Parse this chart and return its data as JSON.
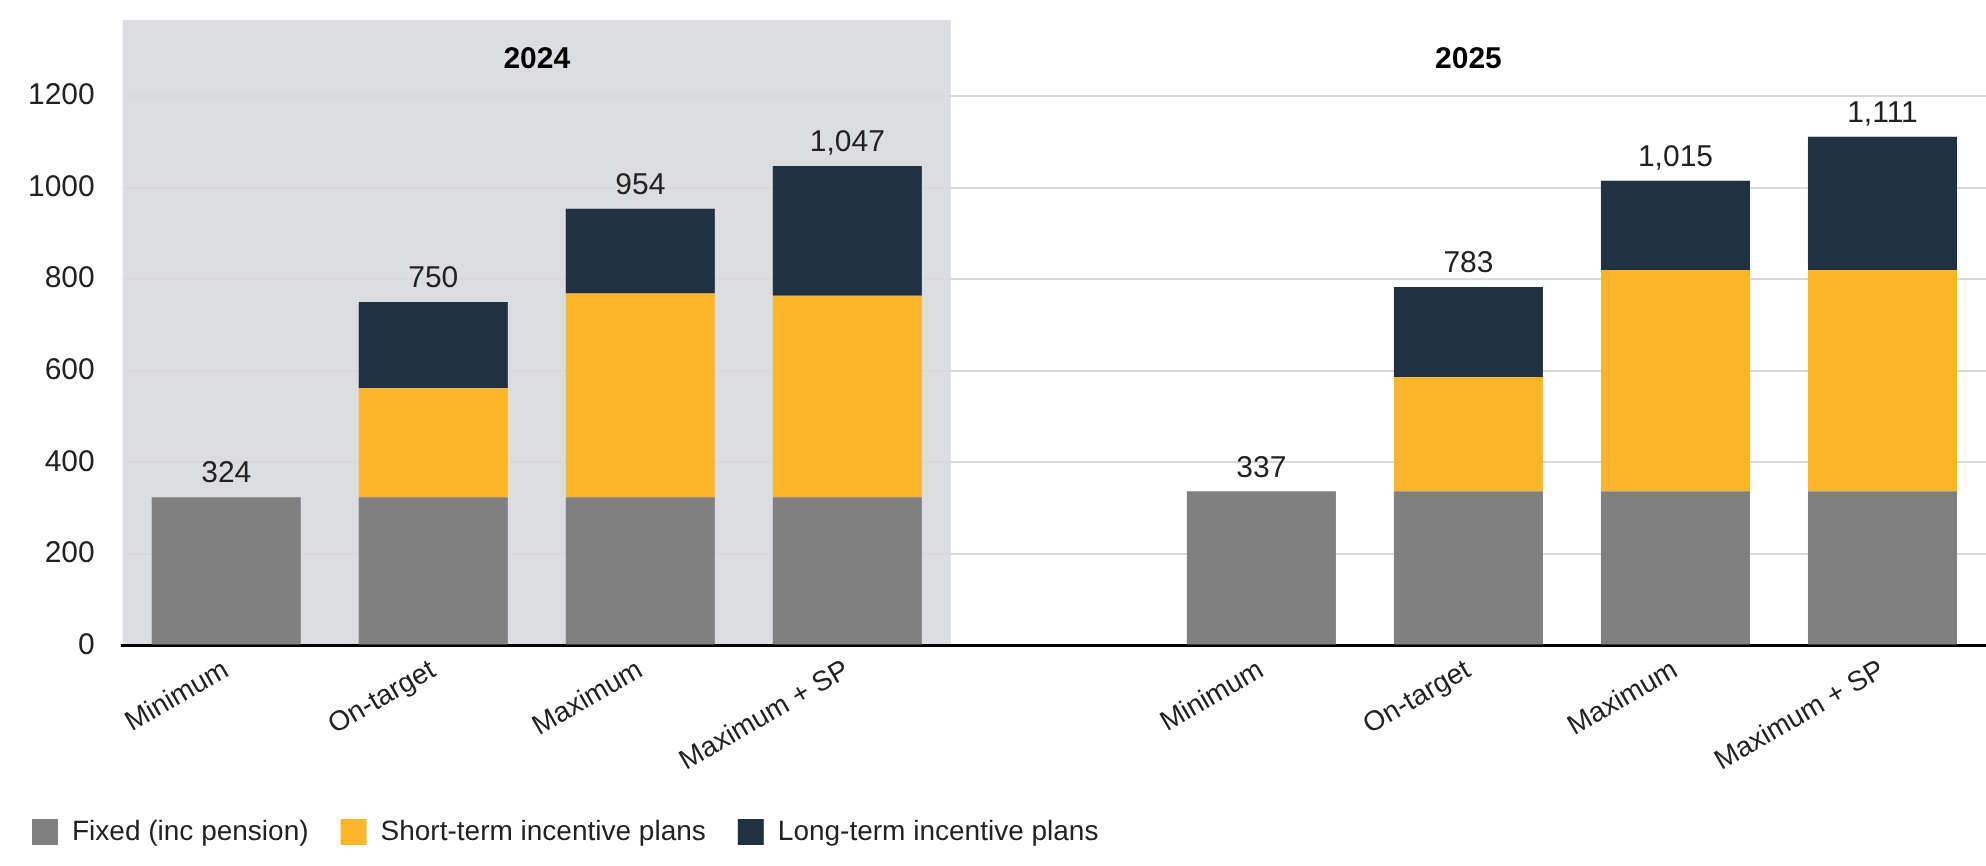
{
  "chart_data": {
    "type": "bar",
    "stacked": true,
    "categories": [
      "Minimum",
      "On-target",
      "Maximum",
      "Maximum + SP",
      null,
      "Minimum",
      "On-target",
      "Maximum",
      "Maximum + SP"
    ],
    "series": [
      {
        "name": "Fixed (inc pension)",
        "color": "#808080",
        "values": [
          324,
          324,
          324,
          324,
          null,
          337,
          337,
          337,
          337
        ]
      },
      {
        "name": "Short-term incentive plans",
        "color": "#fdb52a",
        "values": [
          null,
          238,
          445,
          440,
          null,
          null,
          249,
          483,
          483
        ]
      },
      {
        "name": "Long-term incentive plans",
        "color": "#203241",
        "values": [
          null,
          188,
          185,
          283,
          null,
          null,
          197,
          195,
          291
        ]
      }
    ],
    "totals": [
      "324",
      "750",
      "954",
      "1,047",
      null,
      "337",
      "783",
      "1,015",
      "1,111"
    ],
    "ylim": [
      0,
      1200
    ],
    "yticks": [
      0,
      200,
      400,
      600,
      800,
      1000,
      1200
    ],
    "grid": "y",
    "legend": "bottom left",
    "bands": [
      {
        "axis": "x",
        "from": "Minimum",
        "to": "Maximum + SP",
        "label": "2024",
        "color": "#dcdde0"
      }
    ],
    "annotations": [
      "2025"
    ]
  }
}
